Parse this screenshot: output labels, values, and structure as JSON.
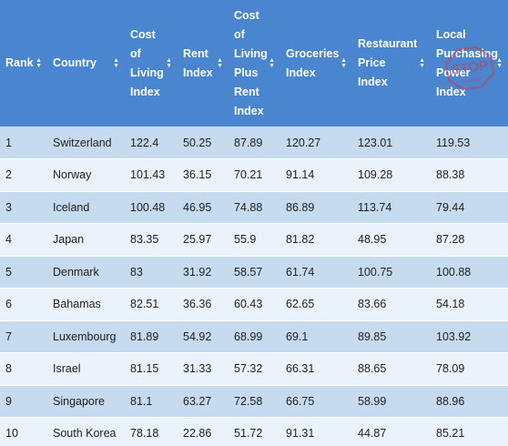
{
  "table": {
    "headers": [
      [
        "Rank"
      ],
      [
        "Country"
      ],
      [
        "Cost",
        "of",
        "Living",
        "Index"
      ],
      [
        "Rent",
        "Index"
      ],
      [
        "Cost",
        "of",
        "Living",
        "Plus",
        "Rent",
        "Index"
      ],
      [
        "Groceries",
        "Index"
      ],
      [
        "Restaurant",
        "Price",
        "Index"
      ],
      [
        "Local",
        "Purchasing",
        "Power",
        "Index"
      ]
    ],
    "rows": [
      [
        "1",
        "Switzerland",
        "122.4",
        "50.25",
        "87.89",
        "120.27",
        "123.01",
        "119.53"
      ],
      [
        "2",
        "Norway",
        "101.43",
        "36.15",
        "70.21",
        "91.14",
        "109.28",
        "88.38"
      ],
      [
        "3",
        "Iceland",
        "100.48",
        "46.95",
        "74.88",
        "86.89",
        "113.74",
        "79.44"
      ],
      [
        "4",
        "Japan",
        "83.35",
        "25.97",
        "55.9",
        "81.82",
        "48.95",
        "87.28"
      ],
      [
        "5",
        "Denmark",
        "83",
        "31.92",
        "58.57",
        "61.74",
        "100.75",
        "100.88"
      ],
      [
        "6",
        "Bahamas",
        "82.51",
        "36.36",
        "60.43",
        "62.65",
        "83.66",
        "54.18"
      ],
      [
        "7",
        "Luxembourg",
        "81.89",
        "54.92",
        "68.99",
        "69.1",
        "89.85",
        "103.92"
      ],
      [
        "8",
        "Israel",
        "81.15",
        "31.33",
        "57.32",
        "66.31",
        "88.65",
        "78.09"
      ],
      [
        "9",
        "Singapore",
        "81.1",
        "63.27",
        "72.58",
        "66.75",
        "58.99",
        "88.96"
      ],
      [
        "10",
        "South Korea",
        "78.18",
        "22.86",
        "51.72",
        "91.31",
        "44.87",
        "85.21"
      ]
    ]
  },
  "watermark": {
    "text": "STOP",
    "subtext": "ciudad",
    "color": "#d9343a"
  },
  "colors": {
    "header_bg": "#4a85cf",
    "row_dark": "#c6daf0",
    "row_light": "#eaf2fb"
  },
  "icons": {
    "sort": "sort-updown-icon"
  }
}
